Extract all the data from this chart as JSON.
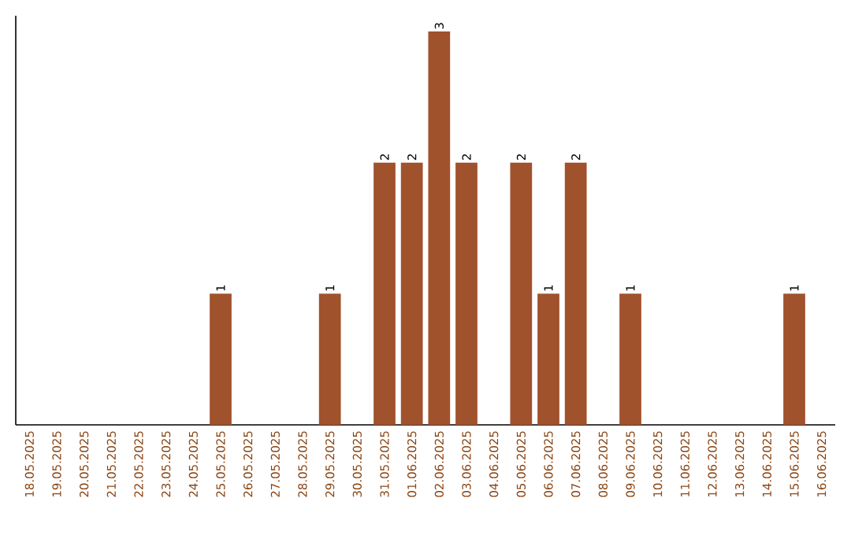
{
  "chart_data": {
    "type": "bar",
    "categories": [
      "18.05.2025",
      "19.05.2025",
      "20.05.2025",
      "21.05.2025",
      "22.05.2025",
      "23.05.2025",
      "24.05.2025",
      "25.05.2025",
      "26.05.2025",
      "27.05.2025",
      "28.05.2025",
      "29.05.2025",
      "30.05.2025",
      "31.05.2025",
      "01.06.2025",
      "02.06.2025",
      "03.06.2025",
      "04.06.2025",
      "05.06.2025",
      "06.06.2025",
      "07.06.2025",
      "08.06.2025",
      "09.06.2025",
      "10.06.2025",
      "11.06.2025",
      "12.06.2025",
      "13.06.2025",
      "14.06.2025",
      "15.06.2025",
      "16.06.2025"
    ],
    "values": [
      0,
      0,
      0,
      0,
      0,
      0,
      0,
      1,
      0,
      0,
      0,
      1,
      0,
      2,
      2,
      3,
      2,
      0,
      2,
      1,
      2,
      0,
      1,
      0,
      0,
      0,
      0,
      0,
      1,
      0
    ],
    "value_labels": [
      null,
      null,
      null,
      null,
      null,
      null,
      null,
      "1",
      null,
      null,
      null,
      "1",
      null,
      "2",
      "2",
      "3",
      "2",
      null,
      "2",
      "1",
      "2",
      null,
      "1",
      null,
      null,
      null,
      null,
      null,
      "1",
      null
    ],
    "color": "#a0522d",
    "tick_labels": "x"
  }
}
